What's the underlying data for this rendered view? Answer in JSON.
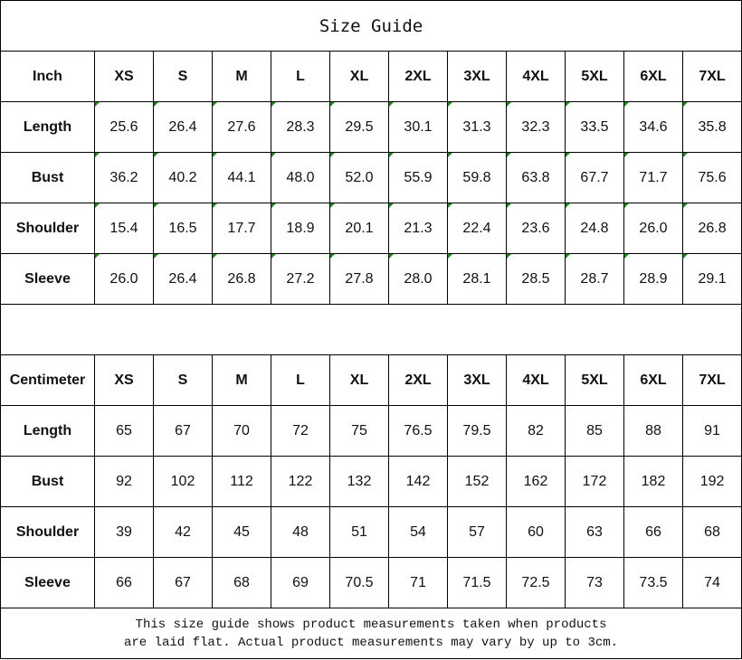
{
  "title": "Size Guide",
  "sizes": [
    "XS",
    "S",
    "M",
    "L",
    "XL",
    "2XL",
    "3XL",
    "4XL",
    "5XL",
    "6XL",
    "7XL"
  ],
  "inch": {
    "unit": "Inch",
    "rows": [
      {
        "label": "Length",
        "values": [
          "25.6",
          "26.4",
          "27.6",
          "28.3",
          "29.5",
          "30.1",
          "31.3",
          "32.3",
          "33.5",
          "34.6",
          "35.8"
        ]
      },
      {
        "label": "Bust",
        "values": [
          "36.2",
          "40.2",
          "44.1",
          "48.0",
          "52.0",
          "55.9",
          "59.8",
          "63.8",
          "67.7",
          "71.7",
          "75.6"
        ]
      },
      {
        "label": "Shoulder",
        "values": [
          "15.4",
          "16.5",
          "17.7",
          "18.9",
          "20.1",
          "21.3",
          "22.4",
          "23.6",
          "24.8",
          "26.0",
          "26.8"
        ]
      },
      {
        "label": "Sleeve",
        "values": [
          "26.0",
          "26.4",
          "26.8",
          "27.2",
          "27.8",
          "28.0",
          "28.1",
          "28.5",
          "28.7",
          "28.9",
          "29.1"
        ]
      }
    ]
  },
  "cm": {
    "unit": "Centimeter",
    "rows": [
      {
        "label": "Length",
        "values": [
          "65",
          "67",
          "70",
          "72",
          "75",
          "76.5",
          "79.5",
          "82",
          "85",
          "88",
          "91"
        ]
      },
      {
        "label": "Bust",
        "values": [
          "92",
          "102",
          "112",
          "122",
          "132",
          "142",
          "152",
          "162",
          "172",
          "182",
          "192"
        ]
      },
      {
        "label": "Shoulder",
        "values": [
          "39",
          "42",
          "45",
          "48",
          "51",
          "54",
          "57",
          "60",
          "63",
          "66",
          "68"
        ]
      },
      {
        "label": "Sleeve",
        "values": [
          "66",
          "67",
          "68",
          "69",
          "70.5",
          "71",
          "71.5",
          "72.5",
          "73",
          "73.5",
          "74"
        ]
      }
    ]
  },
  "note": {
    "line1": "This size guide shows product measurements taken when products",
    "line2": "are laid flat. Actual product measurements may vary by up to 3cm."
  },
  "colors": {
    "marker": "#1a8a1a"
  }
}
